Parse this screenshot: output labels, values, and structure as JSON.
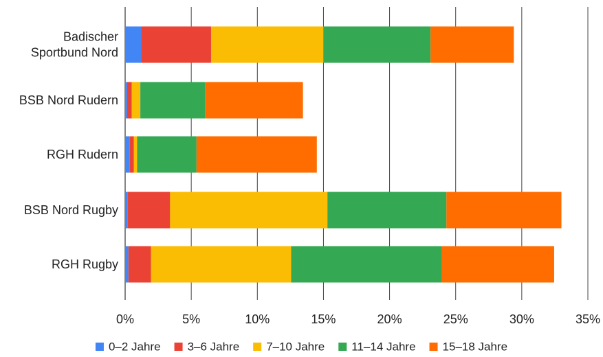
{
  "chart_data": {
    "type": "bar",
    "orientation": "horizontal",
    "stacked": true,
    "title": "",
    "xlabel": "",
    "ylabel": "",
    "categories": [
      [
        "Badischer",
        "Sportbund Nord"
      ],
      [
        "BSB Nord Rudern"
      ],
      [
        "RGH Rudern"
      ],
      [
        "BSB Nord Rugby"
      ],
      [
        "RGH Rugby"
      ]
    ],
    "xlim": [
      0,
      35
    ],
    "x_ticks": [
      0,
      5,
      10,
      15,
      20,
      25,
      30,
      35
    ],
    "x_tick_labels": [
      "0%",
      "5%",
      "10%",
      "15%",
      "20%",
      "25%",
      "30%",
      "35%"
    ],
    "grid": "vertical",
    "legend_position": "bottom",
    "series": [
      {
        "name": "0–2 Jahre",
        "color": "#4285F4",
        "values": [
          1.2,
          0.15,
          0.35,
          0.2,
          0.25
        ]
      },
      {
        "name": "3–6 Jahre",
        "color": "#EA4335",
        "values": [
          5.3,
          0.35,
          0.3,
          3.2,
          1.7
        ]
      },
      {
        "name": "7–10 Jahre",
        "color": "#FBBC04",
        "values": [
          8.5,
          0.65,
          0.25,
          11.9,
          10.6
        ]
      },
      {
        "name": "11–14 Jahre",
        "color": "#34A853",
        "values": [
          8.1,
          4.9,
          4.5,
          9.0,
          11.4
        ]
      },
      {
        "name": "15–18 Jahre",
        "color": "#FF6D01",
        "values": [
          6.3,
          7.4,
          9.1,
          8.7,
          8.5
        ]
      }
    ]
  }
}
